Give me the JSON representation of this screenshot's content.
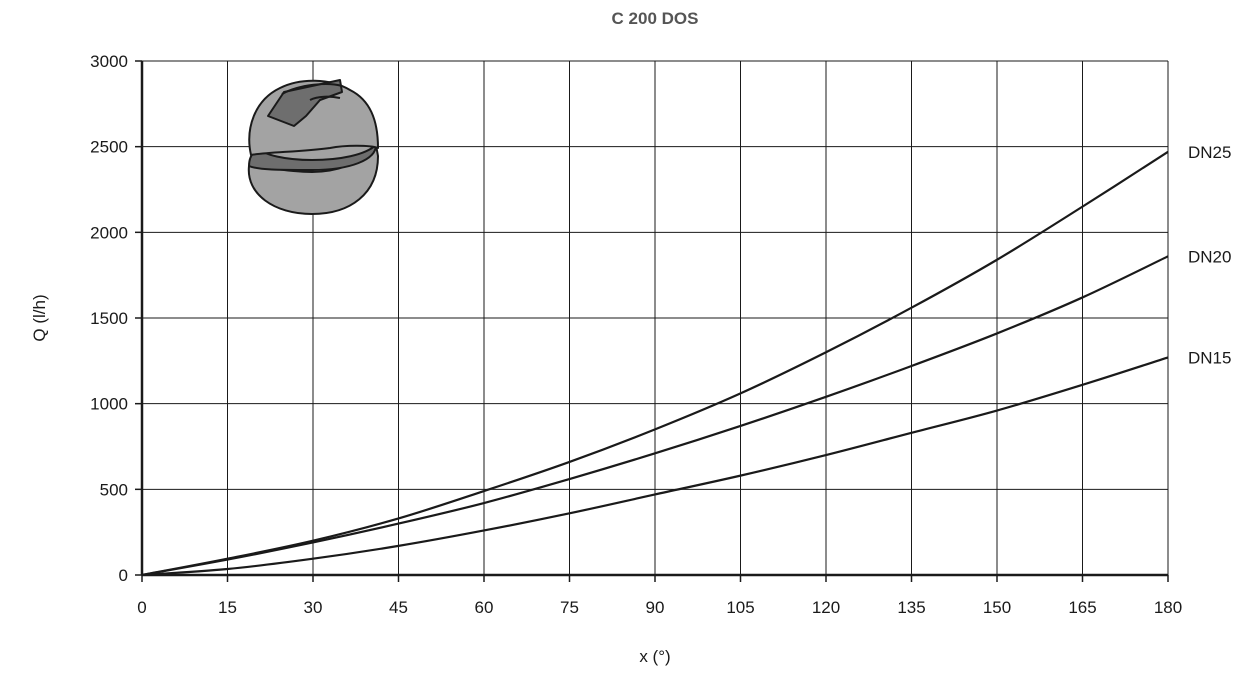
{
  "chart_data": {
    "type": "line",
    "title": "C 200 DOS",
    "xlabel": "x (°)",
    "ylabel": "Q (l/h)",
    "xlim": [
      0,
      180
    ],
    "ylim": [
      0,
      3000
    ],
    "x_ticks": [
      0,
      15,
      30,
      45,
      60,
      75,
      90,
      105,
      120,
      135,
      150,
      165,
      180
    ],
    "y_ticks": [
      0,
      500,
      1000,
      1500,
      2000,
      2500,
      3000
    ],
    "grid": true,
    "legend": "inline-right",
    "line_color": "#1a1a1a",
    "x": [
      0,
      15,
      30,
      45,
      60,
      75,
      90,
      105,
      120,
      135,
      150,
      165,
      180
    ],
    "series": [
      {
        "name": "DN25",
        "values": [
          0,
          95,
          200,
          330,
          490,
          660,
          850,
          1060,
          1300,
          1560,
          1840,
          2150,
          2470
        ]
      },
      {
        "name": "DN20",
        "values": [
          0,
          90,
          190,
          300,
          420,
          560,
          710,
          870,
          1040,
          1220,
          1410,
          1620,
          1860
        ]
      },
      {
        "name": "DN15",
        "values": [
          0,
          35,
          95,
          170,
          260,
          360,
          470,
          580,
          700,
          830,
          960,
          1110,
          1270
        ]
      }
    ]
  },
  "illustration": {
    "name": "ball-valve-icon",
    "fill_light": "#a3a3a3",
    "fill_dark": "#6e6e6e"
  }
}
